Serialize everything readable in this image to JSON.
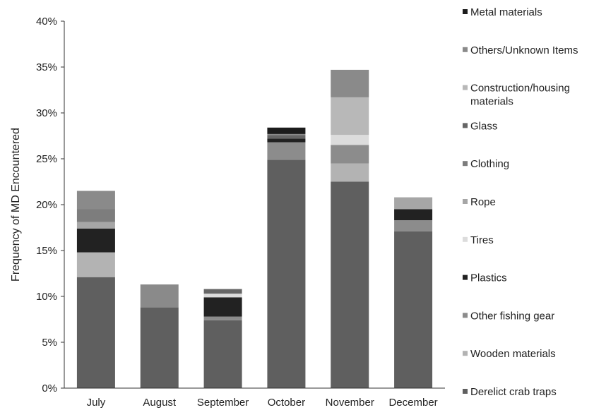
{
  "chart_data": {
    "type": "bar",
    "stacked": true,
    "ylabel": "Frequency of MD Encountered",
    "xlabel": "",
    "ylim": [
      0,
      40
    ],
    "y_ticks": [
      "0%",
      "5%",
      "10%",
      "15%",
      "20%",
      "25%",
      "30%",
      "35%",
      "40%"
    ],
    "y_tick_values": [
      0,
      5,
      10,
      15,
      20,
      25,
      30,
      35,
      40
    ],
    "grid": false,
    "legend_position": "right",
    "categories": [
      "July",
      "August",
      "September",
      "October",
      "November",
      "December"
    ],
    "series": [
      {
        "name": "Derelict crab traps",
        "color": "#5f5f5f",
        "values": [
          12.1,
          8.8,
          7.4,
          24.9,
          22.5,
          17.1
        ]
      },
      {
        "name": "Wooden materials",
        "color": "#b3b3b3",
        "values": [
          2.7,
          0,
          0,
          0,
          2.0,
          0
        ]
      },
      {
        "name": "Other fishing gear",
        "color": "#8c8c8c",
        "values": [
          0,
          0,
          0.4,
          1.9,
          2.0,
          1.2
        ]
      },
      {
        "name": "Plastics",
        "color": "#222222",
        "values": [
          2.6,
          0,
          2.1,
          0.4,
          0,
          1.2
        ]
      },
      {
        "name": "Tires",
        "color": "#dcdcdc",
        "values": [
          0,
          0,
          0.4,
          0,
          1.1,
          0
        ]
      },
      {
        "name": "Rope",
        "color": "#a6a6a6",
        "values": [
          0.7,
          0,
          0,
          0,
          0,
          1.3
        ]
      },
      {
        "name": "Clothing",
        "color": "#7d7d7d",
        "values": [
          1.4,
          0,
          0,
          0,
          0,
          0
        ]
      },
      {
        "name": "Glass",
        "color": "#666666",
        "values": [
          0,
          0,
          0.5,
          0.4,
          0,
          0
        ]
      },
      {
        "name": "Construction/housing materials",
        "color": "#b8b8b8",
        "values": [
          0,
          0,
          0,
          0,
          4.1,
          0
        ]
      },
      {
        "name": "Others/Unknown Items",
        "color": "#8a8a8a",
        "values": [
          2.0,
          2.5,
          0,
          0.1,
          3.0,
          0
        ]
      },
      {
        "name": "Metal materials",
        "color": "#1c1c1c",
        "values": [
          0,
          0,
          0,
          0.7,
          0,
          0
        ]
      }
    ]
  }
}
